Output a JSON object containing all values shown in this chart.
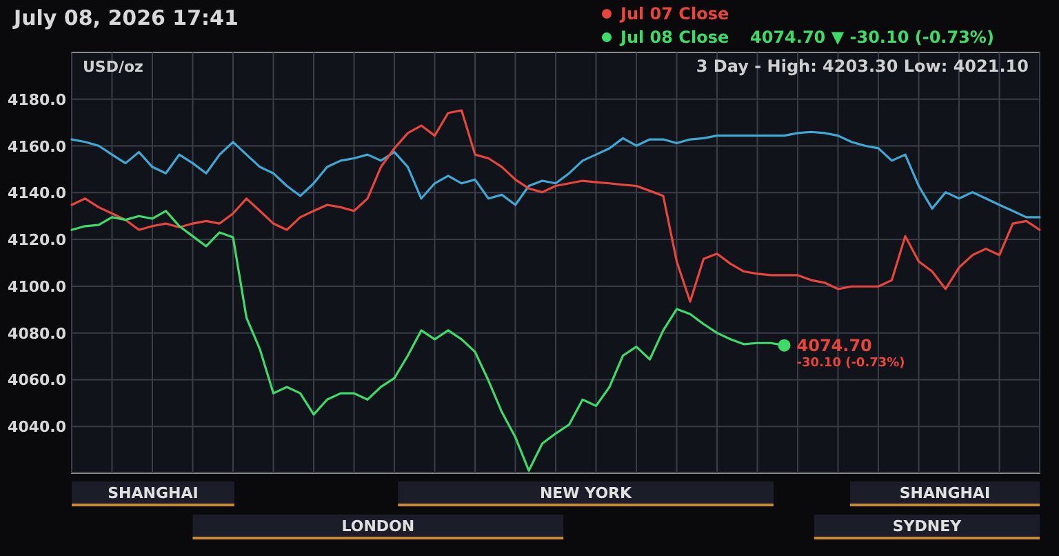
{
  "chart_data": {
    "type": "line",
    "title": "July 08, 2026 17:41",
    "ylabel": "USD/oz",
    "annotations": [
      "4074.70 ▼ -30.10 (-0.73%)",
      "3 Day - High: 4203.30  Low: 4021.10",
      "4074.70",
      "-30.10 (-0.73%)",
      "SHANGHAI",
      "LONDON",
      "NEW YORK",
      "SHANGHAI",
      "SYDNEY"
    ],
    "categories": [
      null,
      null,
      null,
      null,
      null,
      null,
      null,
      null,
      null,
      null,
      null,
      null,
      null,
      null,
      null,
      null,
      null,
      null,
      null,
      null,
      null,
      null,
      null,
      null,
      null,
      null,
      null,
      null,
      null,
      null,
      null,
      null,
      null,
      null,
      null,
      null,
      null,
      null,
      null,
      null,
      null,
      null,
      null,
      null,
      null,
      null,
      null,
      null,
      null,
      null,
      null,
      null,
      null,
      null,
      null,
      null,
      null,
      null,
      null,
      null,
      null,
      null,
      null,
      null,
      null,
      null,
      null,
      null,
      null,
      null,
      null,
      null,
      null
    ],
    "ylim": [
      4020,
      4200
    ],
    "yticks": [
      {
        "value": 4040,
        "label": "4040.0"
      },
      {
        "value": 4060,
        "label": "4060.0"
      },
      {
        "value": 4080,
        "label": "4080.0"
      },
      {
        "value": 4100,
        "label": "4100.0"
      },
      {
        "value": 4120,
        "label": "4120.0"
      },
      {
        "value": 4140,
        "label": "4140.0"
      },
      {
        "value": 4160,
        "label": "4160.0"
      },
      {
        "value": 4180,
        "label": "4180.0"
      }
    ],
    "tick_labels": "y",
    "grid": true,
    "legend": "top right",
    "line_style": "solid",
    "series": [
      {
        "color": "#3fa9d6",
        "values": [
          4162.8,
          4161.7,
          4160.1,
          4156.3,
          4152.6,
          4157.4,
          4151.0,
          4148.3,
          4156.3,
          4152.6,
          4148.3,
          4156.3,
          4161.7,
          4156.3,
          4151.0,
          4148.3,
          4142.9,
          4138.6,
          4144.0,
          4151.0,
          4153.7,
          4154.7,
          4156.3,
          4153.7,
          4157.4,
          4151.0,
          4137.5,
          4144.0,
          4147.2,
          4144.0,
          4145.6,
          4137.5,
          4139.1,
          4134.8,
          4142.9,
          4145.1,
          4144.0,
          4148.3,
          4153.7,
          4156.3,
          4159.0,
          4163.3,
          4160.1,
          4162.8,
          4162.8,
          4161.2,
          4162.8,
          4163.3,
          4164.4,
          4164.4,
          4164.4,
          4164.4,
          4164.4,
          4164.4,
          4165.5,
          4166.0,
          4165.5,
          4164.4,
          4161.7,
          4160.1,
          4159.0,
          4153.7,
          4156.3,
          4142.9,
          4133.2,
          4140.2,
          4137.5,
          4140.2,
          4137.5,
          4134.8,
          4132.2,
          4129.5,
          4129.5
        ]
      },
      {
        "name": "Jul 07 Close",
        "color": "#e8463c",
        "values": [
          4134.8,
          4137.5,
          4133.8,
          4131.1,
          4128.4,
          4124.1,
          4125.7,
          4126.8,
          4125.2,
          4126.8,
          4127.9,
          4126.8,
          4131.1,
          4137.5,
          4132.2,
          4126.8,
          4124.1,
          4129.5,
          4132.2,
          4134.8,
          4133.8,
          4132.2,
          4137.5,
          4151.0,
          4159.0,
          4165.5,
          4168.7,
          4164.4,
          4174.1,
          4175.2,
          4156.3,
          4154.7,
          4151.0,
          4145.6,
          4141.8,
          4140.2,
          4142.9,
          4144.0,
          4145.1,
          4144.5,
          4144.0,
          4143.4,
          4142.9,
          4140.8,
          4138.6,
          4110.6,
          4093.4,
          4111.7,
          4113.9,
          4109.6,
          4106.3,
          4105.3,
          4104.7,
          4104.7,
          4104.7,
          4102.6,
          4101.5,
          4098.8,
          4099.9,
          4099.9,
          4099.9,
          4102.6,
          4121.4,
          4110.6,
          4106.3,
          4098.8,
          4108.0,
          4113.3,
          4116.0,
          4113.3,
          4126.8,
          4127.9,
          4124.1
        ]
      },
      {
        "name": "Jul 08 Close",
        "color": "#3ddc6a",
        "values": [
          4124.1,
          4125.7,
          4126.2,
          4129.5,
          4128.4,
          4130.0,
          4128.9,
          4132.2,
          4125.7,
          4121.4,
          4117.1,
          4123.0,
          4120.9,
          4086.5,
          4073.0,
          4054.2,
          4056.9,
          4054.2,
          4045.1,
          4051.5,
          4054.2,
          4054.2,
          4051.5,
          4056.9,
          4060.7,
          4070.3,
          4081.1,
          4077.3,
          4081.1,
          4077.3,
          4071.9,
          4059.6,
          4046.1,
          4035.4,
          4021.1,
          4032.7,
          4037.0,
          4040.8,
          4051.5,
          4048.8,
          4056.9,
          4070.3,
          4074.1,
          4068.7,
          4081.1,
          4090.2,
          4088.1,
          4083.8,
          4080.0,
          4077.3,
          4075.2,
          4075.7,
          4075.7,
          4074.7,
          null,
          null,
          null,
          null,
          null,
          null,
          null,
          null,
          null,
          null,
          null,
          null,
          null,
          null,
          null,
          null,
          null,
          null,
          null
        ]
      }
    ]
  }
}
